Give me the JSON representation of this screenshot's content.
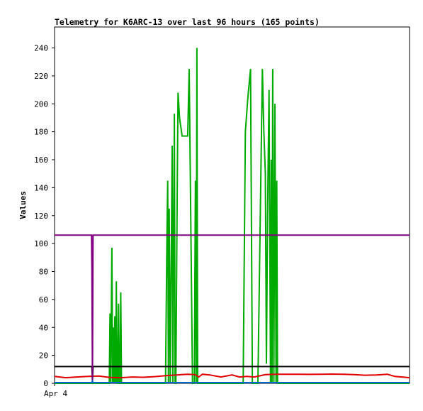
{
  "chart_data": {
    "type": "line",
    "title": "Telemetry for K6ARC-13 over last 96 hours (165 points)",
    "xlabel": "",
    "ylabel": "Values",
    "ylim": [
      0,
      255
    ],
    "yticks": [
      0,
      20,
      40,
      60,
      80,
      100,
      120,
      140,
      160,
      180,
      200,
      220,
      240
    ],
    "xlim": [
      0,
      96
    ],
    "xticks": [
      {
        "x": 0,
        "label": "Apr 4"
      }
    ],
    "grid": false,
    "series": [
      {
        "color": "#00aa00",
        "x": [
          0,
          14.8,
          15.0,
          15.2,
          15.5,
          15.7,
          15.9,
          16.1,
          16.3,
          16.5,
          16.7,
          16.9,
          17.1,
          17.3,
          17.5,
          17.7,
          17.9,
          18.1,
          18.3,
          18.5,
          18.7,
          18.9,
          19.1,
          20,
          30.0,
          30.4,
          30.6,
          30.8,
          31.0,
          31.3,
          31.8,
          32.0,
          32.4,
          32.6,
          32.8,
          33.2,
          33.4,
          33.8,
          34.5,
          35.5,
          36.0,
          36.4,
          37.3,
          37.8,
          38.1,
          38.3,
          38.5,
          38.7,
          39.0,
          39.3,
          39.6,
          40,
          51.0,
          51.6,
          52.3,
          53.0,
          53.5,
          54.0,
          55.0,
          56.2,
          56.6,
          57.0,
          57.3,
          57.6,
          58.0,
          58.4,
          58.6,
          58.8,
          59.0,
          59.3,
          59.6,
          59.9,
          60.1,
          60.3,
          60.5,
          61,
          96
        ],
        "y": [
          0,
          0,
          50,
          0,
          97,
          0,
          40,
          0,
          48,
          0,
          73,
          0,
          0,
          57,
          0,
          0,
          65,
          0,
          0,
          0,
          0,
          0,
          0,
          0,
          0,
          110,
          145,
          0,
          125,
          0,
          170,
          0,
          193,
          0,
          0,
          150,
          208,
          190,
          177,
          177,
          177,
          225,
          0,
          0,
          145,
          0,
          240,
          0,
          0,
          0,
          0,
          0,
          0,
          180,
          205,
          225,
          0,
          0,
          0,
          225,
          180,
          150,
          14,
          120,
          210,
          0,
          160,
          0,
          225,
          0,
          200,
          0,
          145,
          0,
          0,
          0,
          0
        ]
      },
      {
        "color": "#e00000",
        "x": [
          0,
          3,
          6,
          9,
          12,
          15,
          18,
          21,
          24,
          27,
          30,
          33,
          36,
          38,
          39,
          40,
          42,
          45,
          48,
          50,
          52,
          54,
          57,
          60,
          63,
          66,
          69,
          72,
          75,
          78,
          81,
          84,
          87,
          90,
          92,
          94,
          96
        ],
        "y": [
          5.0,
          4.0,
          4.5,
          5.0,
          5.2,
          4.2,
          4.0,
          4.5,
          4.3,
          4.8,
          5.5,
          6.0,
          6.5,
          6.2,
          4.5,
          6.5,
          6.0,
          4.5,
          6.0,
          4.5,
          5.0,
          4.5,
          6.2,
          6.5,
          6.5,
          6.5,
          6.4,
          6.5,
          6.6,
          6.5,
          6.2,
          5.8,
          6.0,
          6.5,
          5.0,
          4.5,
          4.0
        ]
      },
      {
        "color": "#000000",
        "x": [
          0,
          10.0,
          10.1,
          10.25,
          10.4,
          96
        ],
        "y": [
          12,
          12,
          12,
          2,
          12,
          12
        ]
      },
      {
        "color": "#800080",
        "x": [
          0,
          10.0,
          10.1,
          10.25,
          10.4,
          96
        ],
        "y": [
          106,
          106,
          81,
          0,
          106,
          106
        ]
      },
      {
        "color": "#0066cc",
        "x": [
          0,
          10.0,
          10.25,
          10.4,
          96
        ],
        "y": [
          0.5,
          0.5,
          1.5,
          0.5,
          0.5
        ]
      }
    ]
  }
}
